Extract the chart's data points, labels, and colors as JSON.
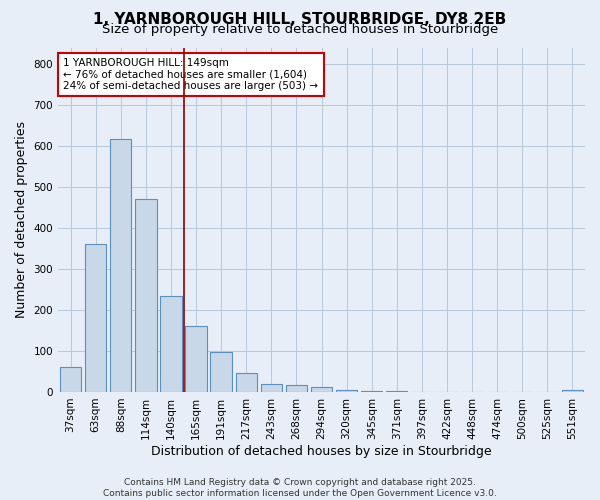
{
  "title_line1": "1, YARNBOROUGH HILL, STOURBRIDGE, DY8 2EB",
  "title_line2": "Size of property relative to detached houses in Stourbridge",
  "xlabel": "Distribution of detached houses by size in Stourbridge",
  "ylabel": "Number of detached properties",
  "categories": [
    "37sqm",
    "63sqm",
    "88sqm",
    "114sqm",
    "140sqm",
    "165sqm",
    "191sqm",
    "217sqm",
    "243sqm",
    "268sqm",
    "294sqm",
    "320sqm",
    "345sqm",
    "371sqm",
    "397sqm",
    "422sqm",
    "448sqm",
    "474sqm",
    "500sqm",
    "525sqm",
    "551sqm"
  ],
  "values": [
    62,
    360,
    617,
    470,
    235,
    162,
    97,
    46,
    20,
    17,
    13,
    5,
    2,
    2,
    1,
    1,
    0,
    0,
    0,
    0,
    5
  ],
  "bar_color": "#c8d8e8",
  "bar_edge_color": "#5a8fc0",
  "vline_x_index": 4,
  "vline_color": "#8b0000",
  "annotation_line1": "1 YARNBOROUGH HILL: 149sqm",
  "annotation_line2": "← 76% of detached houses are smaller (1,604)",
  "annotation_line3": "24% of semi-detached houses are larger (503) →",
  "annotation_box_color": "white",
  "annotation_box_edge_color": "#cc0000",
  "ylim": [
    0,
    840
  ],
  "yticks": [
    0,
    100,
    200,
    300,
    400,
    500,
    600,
    700,
    800
  ],
  "grid_color": "#b8c8dc",
  "bg_color": "#e8eef8",
  "footer_line1": "Contains HM Land Registry data © Crown copyright and database right 2025.",
  "footer_line2": "Contains public sector information licensed under the Open Government Licence v3.0.",
  "title_fontsize": 11,
  "subtitle_fontsize": 9.5,
  "xlabel_fontsize": 9,
  "ylabel_fontsize": 9,
  "tick_fontsize": 7.5,
  "annotation_fontsize": 7.5,
  "footer_fontsize": 6.5
}
